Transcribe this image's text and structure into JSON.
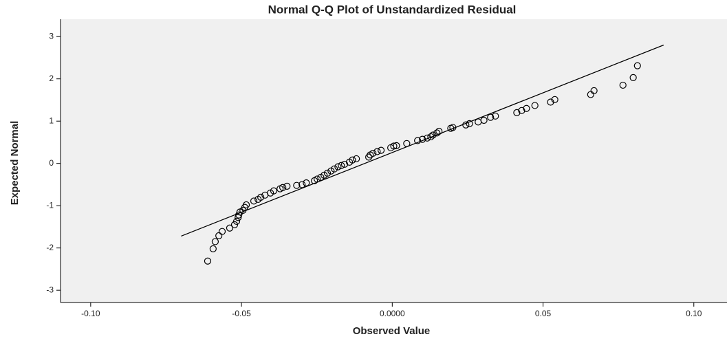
{
  "chart_data": {
    "type": "scatter",
    "title": "Normal Q-Q Plot of Unstandardized Residual",
    "x_label": "Observed Value",
    "y_label": "Expected Normal",
    "xlim": [
      -0.11,
      0.111
    ],
    "ylim": [
      -3.29,
      3.41
    ],
    "xticks": [
      {
        "value": -0.1,
        "label": "-0.10"
      },
      {
        "value": -0.05,
        "label": "-0.05"
      },
      {
        "value": 0,
        "label": "0.0000"
      },
      {
        "value": 0.05,
        "label": "0.05"
      },
      {
        "value": 0.1,
        "label": "0.10"
      }
    ],
    "yticks": [
      -3,
      -2,
      -1,
      0,
      1,
      2,
      3
    ],
    "color": "#000000",
    "reference_line": {
      "x": [
        -0.07,
        0.09
      ],
      "y": [
        -1.72,
        2.8
      ]
    },
    "x": [
      -0.0612,
      -0.0594,
      -0.0587,
      -0.0575,
      -0.0564,
      -0.0539,
      -0.0523,
      -0.0516,
      -0.0511,
      -0.0509,
      -0.0505,
      -0.0495,
      -0.0489,
      -0.0484,
      -0.0459,
      -0.0445,
      -0.0436,
      -0.0422,
      -0.0404,
      -0.0393,
      -0.0372,
      -0.0363,
      -0.0349,
      -0.0317,
      -0.0299,
      -0.0285,
      -0.0258,
      -0.0249,
      -0.0237,
      -0.0226,
      -0.0215,
      -0.0203,
      -0.0192,
      -0.018,
      -0.0169,
      -0.0158,
      -0.0142,
      -0.0132,
      -0.0119,
      -0.0078,
      -0.0073,
      -0.0064,
      -0.005,
      -0.0037,
      -0.0005,
      0.0005,
      0.0014,
      0.0048,
      0.0084,
      0.01,
      0.0116,
      0.0128,
      0.0135,
      0.0148,
      0.0155,
      0.0194,
      0.0201,
      0.0244,
      0.0256,
      0.0285,
      0.0304,
      0.0326,
      0.0342,
      0.0413,
      0.0429,
      0.0445,
      0.0473,
      0.0525,
      0.0539,
      0.0658,
      0.0669,
      0.0765,
      0.0799,
      0.0813
    ],
    "y": [
      -2.31,
      -2.02,
      -1.85,
      -1.71,
      -1.61,
      -1.53,
      -1.45,
      -1.37,
      -1.28,
      -1.22,
      -1.15,
      -1.11,
      -1.04,
      -0.98,
      -0.89,
      -0.85,
      -0.8,
      -0.75,
      -0.7,
      -0.65,
      -0.6,
      -0.57,
      -0.54,
      -0.52,
      -0.5,
      -0.46,
      -0.41,
      -0.37,
      -0.33,
      -0.28,
      -0.23,
      -0.18,
      -0.13,
      -0.08,
      -0.05,
      -0.02,
      0.03,
      0.08,
      0.11,
      0.15,
      0.2,
      0.24,
      0.28,
      0.31,
      0.37,
      0.41,
      0.42,
      0.47,
      0.54,
      0.57,
      0.6,
      0.63,
      0.67,
      0.72,
      0.76,
      0.83,
      0.85,
      0.91,
      0.94,
      0.98,
      1.02,
      1.09,
      1.12,
      1.2,
      1.25,
      1.3,
      1.37,
      1.45,
      1.51,
      1.63,
      1.72,
      1.85,
      2.03,
      2.31
    ]
  }
}
